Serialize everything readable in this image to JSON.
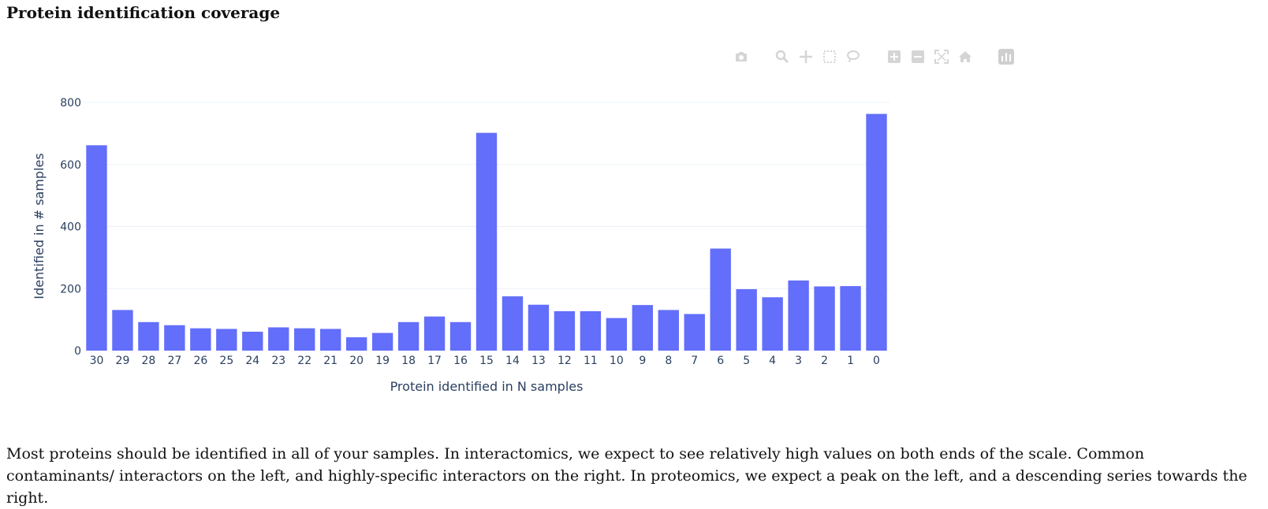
{
  "page": {
    "title": "Protein identification coverage",
    "description": "Most proteins should be identified in all of your samples. In interactomics, we expect to see relatively high values on both ends of the scale. Common contaminants/ interactors on the left, and highly-specific interactors on the right. In proteomics, we expect a peak on the left, and a descending series towards the right."
  },
  "modebar": {
    "icons": [
      "camera-icon",
      "zoom-icon",
      "pan-icon",
      "box-select-icon",
      "lasso-icon",
      "zoom-in-icon",
      "zoom-out-icon",
      "autoscale-icon",
      "reset-axes-icon",
      "plotly-logo-icon"
    ]
  },
  "colors": {
    "bar": "#636efa",
    "grid": "#ebf0f8",
    "axis_text": "#2a3f5f"
  },
  "chart_data": {
    "type": "bar",
    "xlabel": "Protein identified in N samples",
    "ylabel": "Identified in # samples",
    "categories": [
      "30",
      "29",
      "28",
      "27",
      "26",
      "25",
      "24",
      "23",
      "22",
      "21",
      "20",
      "19",
      "18",
      "17",
      "16",
      "15",
      "14",
      "13",
      "12",
      "11",
      "10",
      "9",
      "8",
      "7",
      "6",
      "5",
      "4",
      "3",
      "2",
      "1",
      "0"
    ],
    "values": [
      662,
      131,
      92,
      82,
      72,
      70,
      61,
      75,
      72,
      70,
      43,
      57,
      92,
      110,
      92,
      702,
      175,
      148,
      127,
      127,
      105,
      147,
      131,
      118,
      329,
      198,
      172,
      226,
      207,
      208,
      763
    ],
    "ylim": [
      0,
      800
    ],
    "yticks": [
      0,
      200,
      400,
      600,
      800
    ],
    "grid": true,
    "legend": "none"
  }
}
